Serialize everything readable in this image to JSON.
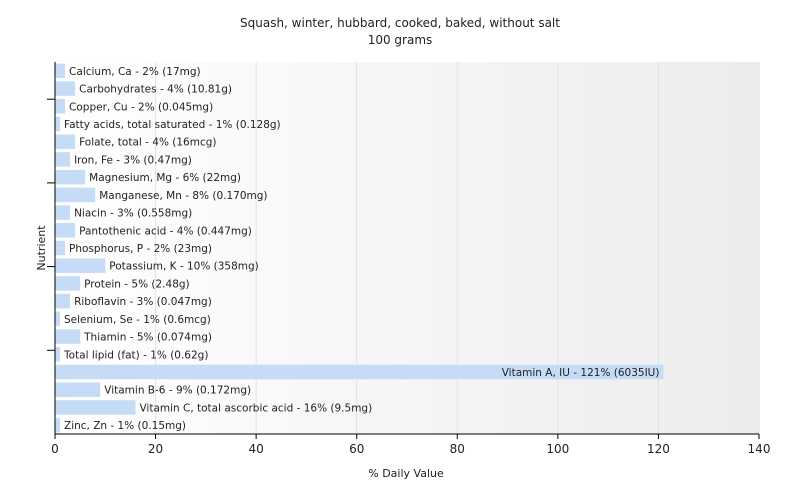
{
  "chart_data": {
    "type": "bar",
    "orientation": "horizontal",
    "title": "Squash, winter, hubbard, cooked, baked, without salt",
    "subtitle": "100 grams",
    "xlabel": "% Daily Value",
    "ylabel": "Nutrient",
    "xlim": [
      0,
      140
    ],
    "xticks": [
      0,
      20,
      40,
      60,
      80,
      100,
      120,
      140
    ],
    "grid": true,
    "bar_color": "#c6dcf6",
    "categories": [
      "Calcium, Ca",
      "Carbohydrates",
      "Copper, Cu",
      "Fatty acids, total saturated",
      "Folate, total",
      "Iron, Fe",
      "Magnesium, Mg",
      "Manganese, Mn",
      "Niacin",
      "Pantothenic acid",
      "Phosphorus, P",
      "Potassium, K",
      "Protein",
      "Riboflavin",
      "Selenium, Se",
      "Thiamin",
      "Total lipid (fat)",
      "Vitamin A, IU",
      "Vitamin B-6",
      "Vitamin C, total ascorbic acid",
      "Zinc, Zn"
    ],
    "values": [
      2,
      4,
      2,
      1,
      4,
      3,
      6,
      8,
      3,
      4,
      2,
      10,
      5,
      3,
      1,
      5,
      1,
      121,
      9,
      16,
      1
    ],
    "bar_labels": [
      "Calcium, Ca - 2% (17mg)",
      "Carbohydrates - 4% (10.81g)",
      "Copper, Cu - 2% (0.045mg)",
      "Fatty acids, total saturated - 1% (0.128g)",
      "Folate, total - 4% (16mcg)",
      "Iron, Fe - 3% (0.47mg)",
      "Magnesium, Mg - 6% (22mg)",
      "Manganese, Mn - 8% (0.170mg)",
      "Niacin - 3% (0.558mg)",
      "Pantothenic acid - 4% (0.447mg)",
      "Phosphorus, P - 2% (23mg)",
      "Potassium, K - 10% (358mg)",
      "Protein - 5% (2.48g)",
      "Riboflavin - 3% (0.047mg)",
      "Selenium, Se - 1% (0.6mcg)",
      "Thiamin - 5% (0.074mg)",
      "Total lipid (fat) - 1% (0.62g)",
      "Vitamin A, IU - 121% (6035IU)",
      "Vitamin B-6 - 9% (0.172mg)",
      "Vitamin C, total ascorbic acid - 16% (9.5mg)",
      "Zinc, Zn - 1% (0.15mg)"
    ]
  }
}
